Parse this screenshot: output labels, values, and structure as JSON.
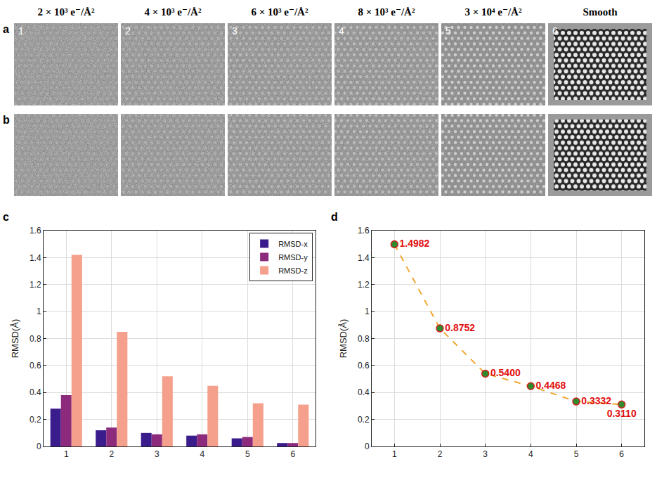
{
  "image_panels": {
    "column_headers": [
      "2 × 10³ e⁻/Å²",
      "4 × 10³ e⁻/Å²",
      "6 × 10³ e⁻/Å²",
      "8 × 10³ e⁻/Å²",
      "3 × 10⁴ e⁻/Å²",
      "Smooth"
    ],
    "rows": [
      {
        "letter": "a",
        "tile_labels": [
          "1",
          "2",
          "3",
          "4",
          "5",
          "6"
        ]
      },
      {
        "letter": "b"
      }
    ]
  },
  "chart_data": [
    {
      "panel": "c",
      "type": "bar",
      "categories": [
        "1",
        "2",
        "3",
        "4",
        "5",
        "6"
      ],
      "series": [
        {
          "name": "RMSD-x",
          "color": "#3b1c8c",
          "values": [
            0.28,
            0.12,
            0.1,
            0.08,
            0.06,
            0.025
          ]
        },
        {
          "name": "RMSD-y",
          "color": "#8c2a7c",
          "values": [
            0.38,
            0.14,
            0.09,
            0.09,
            0.07,
            0.025
          ]
        },
        {
          "name": "RMSD-z",
          "color": "#f4a08c",
          "values": [
            1.42,
            0.85,
            0.52,
            0.45,
            0.32,
            0.31
          ]
        }
      ],
      "ylabel": "RMSD(Å)",
      "ylim": [
        0,
        1.6
      ],
      "yticks": [
        0,
        0.2,
        0.4,
        0.6,
        0.8,
        1,
        1.2,
        1.4,
        1.6
      ],
      "grid": true,
      "legend": "upper right"
    },
    {
      "panel": "d",
      "type": "line",
      "x": [
        1,
        2,
        3,
        4,
        5,
        6
      ],
      "series": [
        {
          "color": "#f0a830",
          "line_style": "dashed",
          "marker": "circle",
          "values": [
            1.4982,
            0.8752,
            0.54,
            0.4468,
            0.3332,
            0.311
          ],
          "value_labels": [
            "1.4982",
            "0.8752",
            "0.5400",
            "0.4468",
            "0.3332",
            "0.3110"
          ]
        }
      ],
      "ylabel": "RMSD(Å)",
      "xlim": [
        0.5,
        6.5
      ],
      "xticks": [
        1,
        2,
        3,
        4,
        5,
        6
      ],
      "ylim": [
        0,
        1.6
      ],
      "yticks": [
        0,
        0.2,
        0.4,
        0.6,
        0.8,
        1,
        1.2,
        1.4,
        1.6
      ],
      "grid": true,
      "data_labels": true
    }
  ]
}
